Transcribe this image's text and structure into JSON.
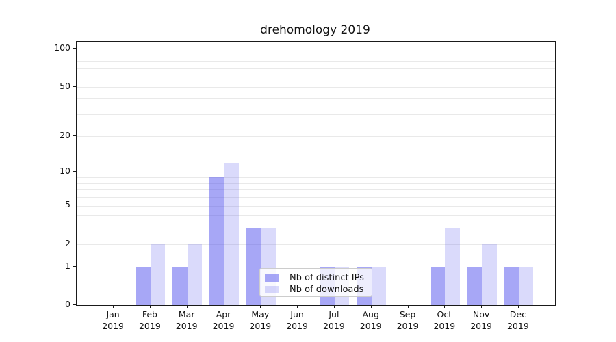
{
  "title": "drehomology 2019",
  "chart_data": {
    "type": "bar",
    "title": "drehomology 2019",
    "xlabel": "",
    "ylabel": "",
    "x_year": "2019",
    "categories": [
      "Jan",
      "Feb",
      "Mar",
      "Apr",
      "May",
      "Jun",
      "Jul",
      "Aug",
      "Sep",
      "Oct",
      "Nov",
      "Dec"
    ],
    "series": [
      {
        "name": "Nb of distinct IPs",
        "color": "rgba(86,86,238,0.52)",
        "values": [
          0,
          1,
          1,
          9,
          3,
          0,
          1,
          1,
          0,
          1,
          1,
          1
        ]
      },
      {
        "name": "Nb of downloads",
        "color": "rgba(86,86,238,0.22)",
        "values": [
          0,
          2,
          2,
          12,
          3,
          0,
          1,
          1,
          0,
          3,
          2,
          1
        ]
      }
    ],
    "y_axis": {
      "scale": "log1p",
      "ticks": [
        0,
        1,
        2,
        5,
        10,
        20,
        50,
        100
      ],
      "major_gridlines": [
        1,
        10,
        100
      ],
      "minor_gridlines": [
        2,
        3,
        4,
        5,
        6,
        7,
        8,
        9,
        20,
        30,
        40,
        50,
        60,
        70,
        80,
        90
      ],
      "ylim": [
        0,
        114
      ]
    },
    "legend_position": "lower center",
    "grid": true
  },
  "colors": {
    "major_grid": "#c8c8c8",
    "minor_grid": "#e9e9e9",
    "spine": "#1a1a1a"
  }
}
